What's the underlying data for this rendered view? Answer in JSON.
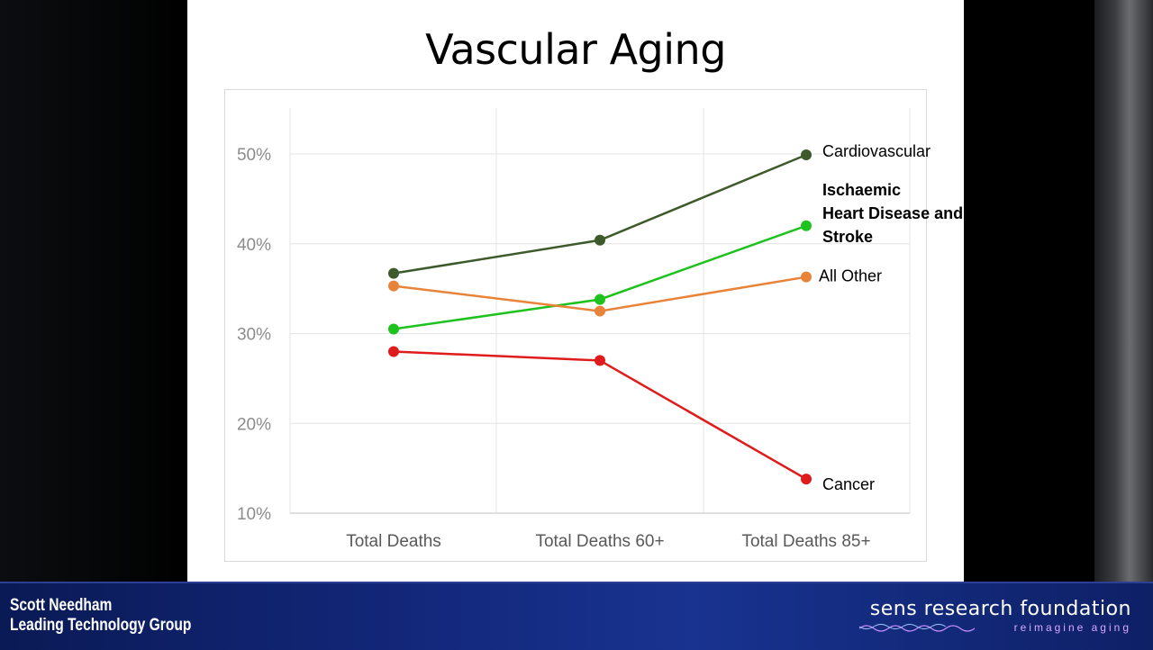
{
  "slide": {
    "title": "Vascular Aging"
  },
  "chart_data": {
    "type": "line",
    "categories": [
      "Total Deaths",
      "Total Deaths 60+",
      "Total Deaths 85+"
    ],
    "ylim": [
      10,
      50
    ],
    "yticks": [
      "10%",
      "20%",
      "30%",
      "40%",
      "50%"
    ],
    "grid": true,
    "series": [
      {
        "name": "Cardiovascular",
        "values": [
          36.7,
          40.4,
          49.9
        ],
        "color": "#3d5a2a",
        "bold": false
      },
      {
        "name": "Ischaemic Heart Disease and Stroke",
        "label_lines": [
          "Ischaemic",
          "Heart Disease and",
          "Stroke"
        ],
        "values": [
          30.5,
          33.8,
          42.0
        ],
        "color": "#1ec21e",
        "bold": true
      },
      {
        "name": "All Other",
        "values": [
          35.3,
          32.5,
          36.3
        ],
        "color": "#e8843a",
        "bold": false
      },
      {
        "name": "Cancer",
        "values": [
          28.0,
          27.0,
          13.8
        ],
        "color": "#e01b1b",
        "bold": false
      }
    ]
  },
  "footer": {
    "presenter_name": "Scott Needham",
    "presenter_org": "Leading Technology Group",
    "org_name": "sens research foundation",
    "org_tagline": "reimagine aging"
  }
}
